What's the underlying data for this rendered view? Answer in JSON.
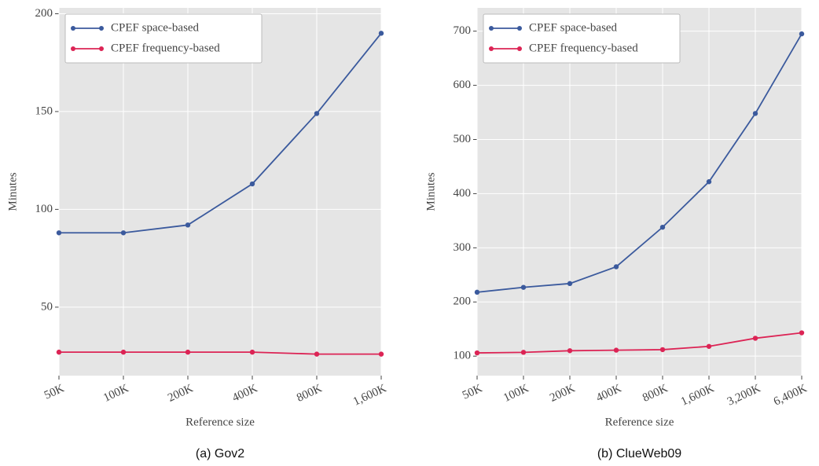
{
  "chart_data": [
    {
      "type": "line",
      "caption": "(a) Gov2",
      "xlabel": "Reference size",
      "ylabel": "Minutes",
      "categories": [
        "50K",
        "100K",
        "200K",
        "400K",
        "800K",
        "1,600K"
      ],
      "series": [
        {
          "name": "CPEF space-based",
          "color": "#3b5a9d",
          "values": [
            88,
            88,
            92,
            113,
            149,
            190
          ]
        },
        {
          "name": "CPEF frequency-based",
          "color": "#dc2455",
          "values": [
            27,
            27,
            27,
            27,
            26,
            26
          ]
        }
      ],
      "ylim": [
        15,
        203
      ],
      "yticks": [
        50,
        100,
        150,
        200
      ],
      "grid": true,
      "legend": "upper-left"
    },
    {
      "type": "line",
      "caption": "(b) ClueWeb09",
      "xlabel": "Reference size",
      "ylabel": "Minutes",
      "categories": [
        "50K",
        "100K",
        "200K",
        "400K",
        "800K",
        "1,600K",
        "3,200K",
        "6,400K"
      ],
      "series": [
        {
          "name": "CPEF space-based",
          "color": "#3b5a9d",
          "values": [
            218,
            227,
            234,
            265,
            338,
            422,
            548,
            695
          ]
        },
        {
          "name": "CPEF frequency-based",
          "color": "#dc2455",
          "values": [
            106,
            107,
            110,
            111,
            112,
            118,
            133,
            143
          ]
        }
      ],
      "ylim": [
        64,
        743
      ],
      "yticks": [
        100,
        200,
        300,
        400,
        500,
        600,
        700
      ],
      "grid": true,
      "legend": "upper-left"
    }
  ]
}
